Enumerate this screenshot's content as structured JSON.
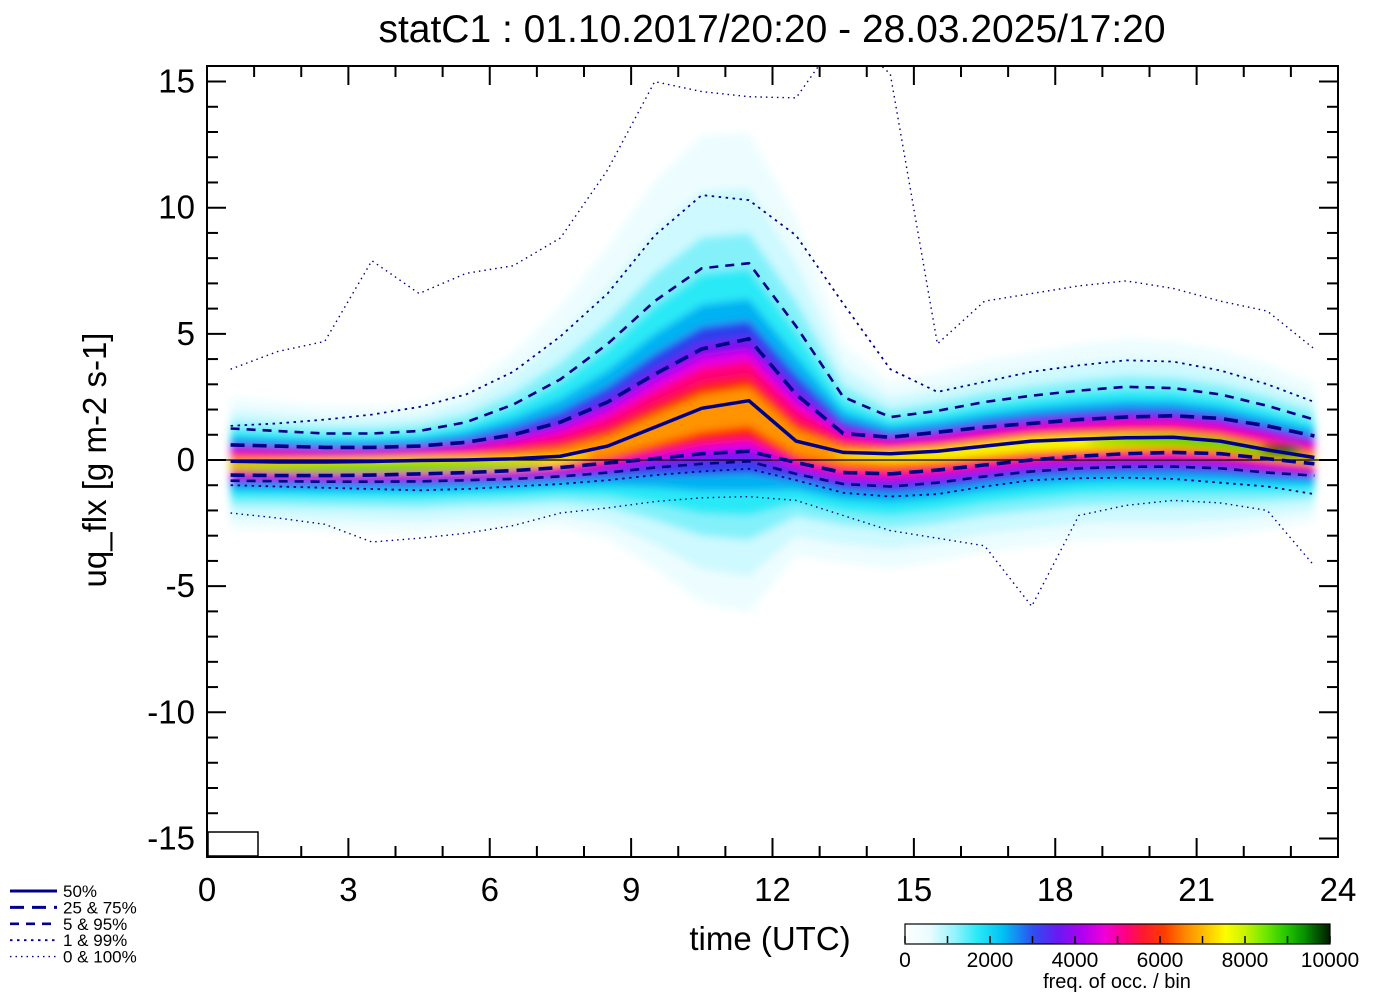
{
  "title": "statC1 : 01.10.2017/20:20 - 28.03.2025/17:20",
  "axes": {
    "xlabel": "time (UTC)",
    "ylabel": "uq_flx [g m-2 s-1]",
    "x_ticks": [
      0,
      3,
      6,
      9,
      12,
      15,
      18,
      21,
      24
    ],
    "y_ticks": [
      -15,
      -10,
      -5,
      0,
      5,
      10,
      15
    ],
    "xlim": [
      0,
      24
    ],
    "ylim": [
      -15.7,
      15.6
    ],
    "x_minor_step": 1,
    "y_minor_step": 1,
    "zero_line": true
  },
  "legend": {
    "items": [
      {
        "label": "50%",
        "style": "solid"
      },
      {
        "label": "25 & 75%",
        "style": "dash_thick"
      },
      {
        "label": "5 & 95%",
        "style": "dash_med"
      },
      {
        "label": "1 & 99%",
        "style": "dot_med"
      },
      {
        "label": "0 & 100%",
        "style": "dot_fine"
      }
    ],
    "line_color": "#00008b"
  },
  "colorbar": {
    "label": "freq. of occ. / bin",
    "tick_values": [
      0,
      2000,
      4000,
      6000,
      8000,
      10000
    ],
    "range": [
      0,
      10000
    ],
    "minor_tick_step": 1000,
    "stops": [
      [
        0.0,
        "#ffffff"
      ],
      [
        0.06,
        "#e8fcff"
      ],
      [
        0.12,
        "#8ff3fb"
      ],
      [
        0.17,
        "#2ae9f7"
      ],
      [
        0.23,
        "#00c2f3"
      ],
      [
        0.3,
        "#2d50f0"
      ],
      [
        0.36,
        "#6a18f3"
      ],
      [
        0.42,
        "#b400f0"
      ],
      [
        0.47,
        "#f000d8"
      ],
      [
        0.52,
        "#ff0080"
      ],
      [
        0.56,
        "#ff1830"
      ],
      [
        0.61,
        "#ff3c00"
      ],
      [
        0.66,
        "#ff8800"
      ],
      [
        0.72,
        "#ffd200"
      ],
      [
        0.755,
        "#fdfd00"
      ],
      [
        0.8,
        "#c8f400"
      ],
      [
        0.85,
        "#6ce800"
      ],
      [
        0.9,
        "#20c400"
      ],
      [
        0.94,
        "#089000"
      ],
      [
        0.97,
        "#045400"
      ],
      [
        1.0,
        "#021c00"
      ]
    ]
  },
  "chart_data": {
    "type": "heatmap",
    "description": "2-D frequency-of-occurrence histogram of flux uq_flx vs time of day with overlaid percentile curves (hourly bins centred on half hours)",
    "title": "statC1 : 01.10.2017/20:20 - 28.03.2025/17:20",
    "xlabel": "time (UTC)",
    "ylabel": "uq_flx [g m-2 s-1]",
    "xlim": [
      0,
      24
    ],
    "ylim": [
      -15.7,
      15.6
    ],
    "hours": [
      0.5,
      1.5,
      2.5,
      3.5,
      4.5,
      5.5,
      6.5,
      7.5,
      8.5,
      9.5,
      10.5,
      11.5,
      12.5,
      13.5,
      14.5,
      15.5,
      16.5,
      17.5,
      18.5,
      19.5,
      20.5,
      21.5,
      22.5,
      23.5
    ],
    "series": [
      {
        "name": "100% (max)",
        "percentile": 100,
        "style": "dot_fine",
        "values": [
          3.6,
          4.3,
          4.7,
          7.9,
          6.6,
          7.4,
          7.7,
          8.8,
          11.5,
          15.0,
          14.6,
          14.4,
          14.35,
          17.0,
          15.3,
          4.6,
          6.3,
          6.6,
          6.9,
          7.1,
          6.8,
          6.3,
          5.9,
          4.4
        ]
      },
      {
        "name": "99%",
        "percentile": 99,
        "style": "dot_med",
        "values": [
          1.35,
          1.45,
          1.6,
          1.8,
          2.1,
          2.6,
          3.5,
          4.9,
          6.6,
          8.9,
          10.5,
          10.3,
          8.9,
          6.2,
          3.6,
          2.7,
          3.1,
          3.5,
          3.75,
          3.95,
          3.9,
          3.55,
          3.0,
          2.3
        ]
      },
      {
        "name": "95%",
        "percentile": 95,
        "style": "dash_med",
        "values": [
          1.25,
          1.15,
          1.05,
          1.05,
          1.15,
          1.5,
          2.2,
          3.2,
          4.6,
          6.3,
          7.6,
          7.8,
          5.3,
          2.5,
          1.7,
          1.95,
          2.3,
          2.55,
          2.75,
          2.9,
          2.85,
          2.6,
          2.15,
          1.6
        ]
      },
      {
        "name": "75%",
        "percentile": 75,
        "style": "dash_thick",
        "values": [
          0.6,
          0.55,
          0.5,
          0.5,
          0.55,
          0.7,
          1.0,
          1.5,
          2.3,
          3.4,
          4.4,
          4.8,
          2.6,
          1.05,
          0.9,
          1.1,
          1.3,
          1.45,
          1.6,
          1.7,
          1.75,
          1.65,
          1.35,
          0.95
        ]
      },
      {
        "name": "50% (median)",
        "percentile": 50,
        "style": "solid",
        "values": [
          -0.05,
          -0.08,
          -0.08,
          -0.06,
          -0.02,
          0.0,
          0.05,
          0.15,
          0.55,
          1.3,
          2.05,
          2.35,
          0.75,
          0.3,
          0.25,
          0.35,
          0.55,
          0.75,
          0.82,
          0.88,
          0.9,
          0.75,
          0.4,
          0.1
        ]
      },
      {
        "name": "25%",
        "percentile": 25,
        "style": "dash_thick",
        "values": [
          -0.6,
          -0.62,
          -0.62,
          -0.6,
          -0.55,
          -0.5,
          -0.42,
          -0.3,
          -0.12,
          0.05,
          0.25,
          0.35,
          -0.1,
          -0.5,
          -0.55,
          -0.4,
          -0.2,
          0.0,
          0.15,
          0.25,
          0.3,
          0.25,
          0.05,
          -0.15
        ]
      },
      {
        "name": "5%",
        "percentile": 5,
        "style": "dash_med",
        "values": [
          -0.82,
          -0.84,
          -0.86,
          -0.86,
          -0.85,
          -0.8,
          -0.75,
          -0.65,
          -0.5,
          -0.3,
          -0.15,
          -0.05,
          -0.55,
          -0.95,
          -1.05,
          -0.9,
          -0.65,
          -0.45,
          -0.33,
          -0.27,
          -0.26,
          -0.33,
          -0.5,
          -0.62
        ]
      },
      {
        "name": "1%",
        "percentile": 1,
        "style": "dot_med",
        "values": [
          -1.0,
          -1.05,
          -1.1,
          -1.15,
          -1.2,
          -1.15,
          -1.05,
          -0.95,
          -0.8,
          -0.6,
          -0.45,
          -0.35,
          -0.8,
          -1.3,
          -1.45,
          -1.35,
          -1.05,
          -0.8,
          -0.72,
          -0.7,
          -0.75,
          -0.9,
          -1.05,
          -1.35
        ]
      },
      {
        "name": "0% (min)",
        "percentile": 0,
        "style": "dot_fine",
        "values": [
          -2.1,
          -2.3,
          -2.55,
          -3.25,
          -3.1,
          -2.9,
          -2.6,
          -2.1,
          -1.9,
          -1.65,
          -1.5,
          -1.45,
          -1.6,
          -2.2,
          -2.8,
          -3.1,
          -3.4,
          -5.8,
          -2.2,
          -1.8,
          -1.6,
          -1.7,
          -2.0,
          -4.2
        ]
      }
    ],
    "heatmap_levels": [
      {
        "color": "#edfdff",
        "ku": 1.95,
        "kl": 3.5
      },
      {
        "color": "#cdf9ff",
        "ku": 1.55,
        "kl": 2.9
      },
      {
        "color": "#84f1fa",
        "ku": 1.22,
        "kl": 2.3
      },
      {
        "color": "#2ae9f6",
        "ku": 0.96,
        "kl": 1.9
      },
      {
        "color": "#00b2f2",
        "ku": 0.74,
        "kl": 1.5
      },
      {
        "color": "#2f3ced",
        "ku": 0.58,
        "kl": 1.2
      },
      {
        "color": "#7c10f0",
        "ku": 0.46,
        "kl": 0.98
      },
      {
        "color": "#e300e8",
        "ku": 0.37,
        "kl": 0.8
      },
      {
        "color": "#ff0076",
        "ku": 0.29,
        "kl": 0.68
      },
      {
        "color": "#ff1f00",
        "ku": 0.18,
        "kl": 0.6
      },
      {
        "color": "#ff9300",
        "ku": 0.1,
        "kl": 0.42
      }
    ],
    "heatmap_highlights": [
      {
        "type": "band",
        "color": "#f6f600",
        "h0": 0.4,
        "h1": 8.2,
        "offset": -0.17,
        "half": 0.26
      },
      {
        "type": "band",
        "color": "#3fd800",
        "h0": 0.4,
        "h1": 7.2,
        "offset": -0.25,
        "half": 0.17
      },
      {
        "type": "band",
        "color": "#f6f600",
        "h0": 13.2,
        "h1": 23.6,
        "offset": -0.12,
        "half": 0.28
      },
      {
        "type": "band",
        "color": "#3fd800",
        "h0": 18.6,
        "h1": 23.6,
        "offset": -0.12,
        "half": 0.2
      },
      {
        "type": "spot",
        "color": "#0a5a00",
        "h": 22.8,
        "v": 0.42,
        "rh": 0.45,
        "rv": 0.18
      },
      {
        "type": "spot",
        "color": "#001500",
        "h": 22.8,
        "v": 0.42,
        "rh": 0.22,
        "rv": 0.09
      }
    ],
    "legend_position": "bottom-left",
    "colorbar_label": "freq. of occ. / bin",
    "colorbar_range": [
      0,
      10000
    ],
    "grid": false
  }
}
